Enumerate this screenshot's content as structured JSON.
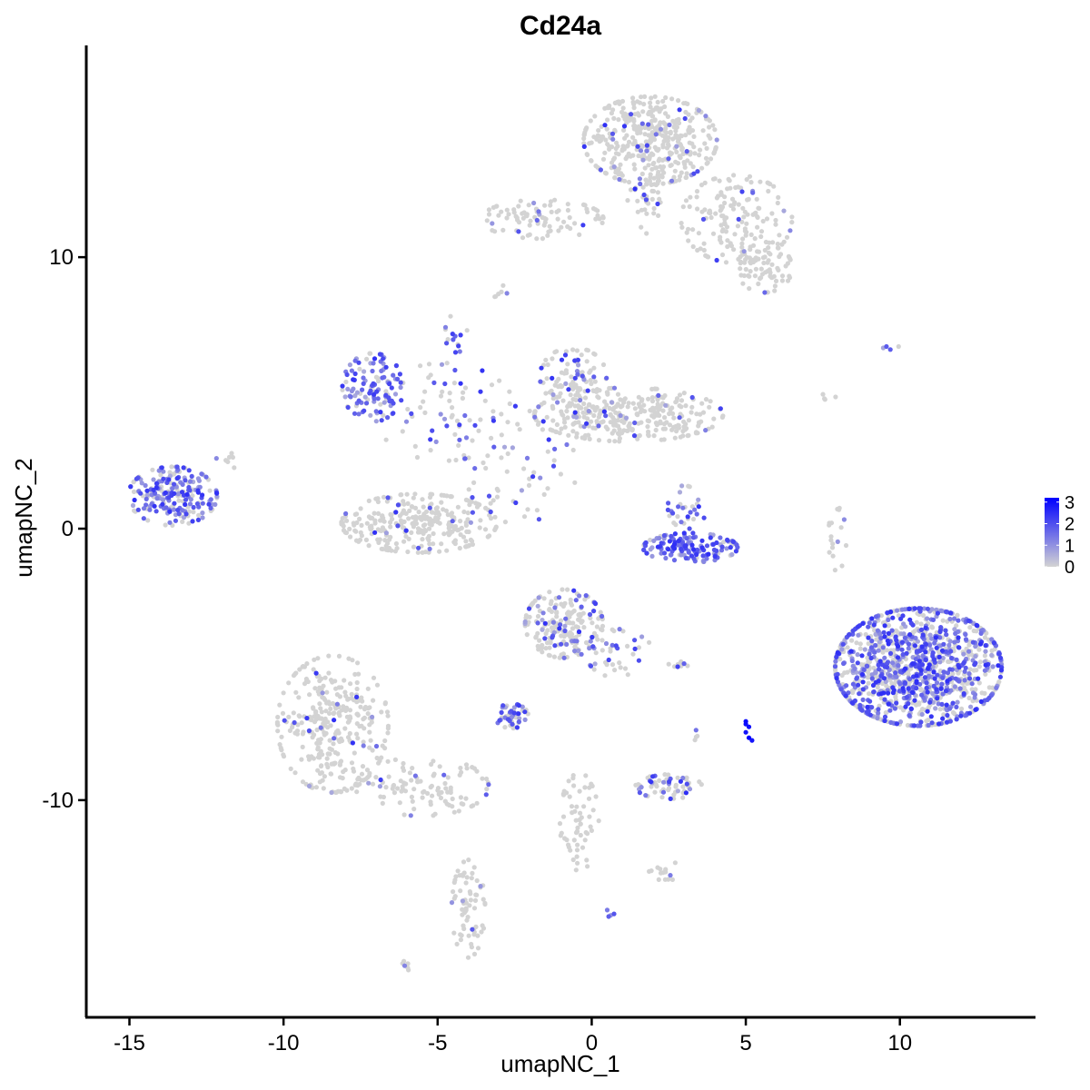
{
  "chart_data": {
    "type": "scatter",
    "title": "Cd24a",
    "xlabel": "umapNC_1",
    "ylabel": "umapNC_2",
    "xlim": [
      -16.4,
      14.4
    ],
    "ylim": [
      -18.0,
      17.8
    ],
    "xticks": [
      -15,
      -10,
      -5,
      0,
      5,
      10
    ],
    "yticks": [
      -10,
      0,
      10
    ],
    "xtick_labels": [
      "-15",
      "-10",
      "-5",
      "0",
      "5",
      "10"
    ],
    "ytick_labels": [
      "-10",
      "0",
      "10"
    ],
    "grid": false,
    "legend": {
      "position": "right",
      "type": "colorbar",
      "ticks": [
        0,
        1,
        2,
        3
      ],
      "tick_labels": [
        "0",
        "1",
        "2",
        "3"
      ],
      "low_color": "#d3d3d3",
      "high_color": "#0000ff",
      "range": [
        0,
        3.2
      ]
    },
    "point_color_low": "#d3d3d3",
    "point_color_high": "#0000ff",
    "clusters": [
      {
        "cx": 1.9,
        "cy": 14.3,
        "sx": 1.2,
        "sy": 0.9,
        "n": 420,
        "expr": 0.08
      },
      {
        "cx": 4.7,
        "cy": 11.4,
        "sx": 1.0,
        "sy": 0.9,
        "n": 160,
        "expr": 0.03
      },
      {
        "cx": 5.6,
        "cy": 9.6,
        "sx": 0.5,
        "sy": 0.5,
        "n": 70,
        "expr": 0.03
      },
      {
        "cx": -1.6,
        "cy": 11.4,
        "sx": 1.1,
        "sy": 0.4,
        "n": 90,
        "expr": 0.08
      },
      {
        "cx": 1.7,
        "cy": 12.3,
        "sx": 0.3,
        "sy": 0.8,
        "n": 40,
        "expr": 0.03
      },
      {
        "cx": -13.6,
        "cy": 1.2,
        "sx": 0.8,
        "sy": 0.6,
        "n": 220,
        "expr": 0.65
      },
      {
        "cx": -7.1,
        "cy": 5.2,
        "sx": 0.55,
        "sy": 0.7,
        "n": 120,
        "expr": 0.75
      },
      {
        "cx": -4.8,
        "cy": 4.3,
        "sx": 1.3,
        "sy": 1.0,
        "n": 70,
        "expr": 0.35
      },
      {
        "cx": -4.4,
        "cy": 7.2,
        "sx": 0.2,
        "sy": 0.4,
        "n": 15,
        "expr": 0.5
      },
      {
        "cx": -0.6,
        "cy": 5.6,
        "sx": 0.6,
        "sy": 0.6,
        "n": 90,
        "expr": 0.3
      },
      {
        "cx": 1.2,
        "cy": 4.2,
        "sx": 1.7,
        "sy": 0.55,
        "n": 320,
        "expr": 0.06
      },
      {
        "cx": -2.3,
        "cy": 2.2,
        "sx": 1.0,
        "sy": 1.2,
        "n": 60,
        "expr": 0.25
      },
      {
        "cx": -5.6,
        "cy": 0.2,
        "sx": 1.4,
        "sy": 0.6,
        "n": 280,
        "expr": 0.06
      },
      {
        "cx": 3.2,
        "cy": -0.7,
        "sx": 0.85,
        "sy": 0.3,
        "n": 150,
        "expr": 0.85
      },
      {
        "cx": 3.1,
        "cy": 0.8,
        "sx": 0.35,
        "sy": 0.45,
        "n": 30,
        "expr": 0.45
      },
      {
        "cx": 10.6,
        "cy": -5.1,
        "sx": 1.5,
        "sy": 1.2,
        "n": 1200,
        "expr": 0.55
      },
      {
        "cx": -8.4,
        "cy": -7.2,
        "sx": 1.0,
        "sy": 1.4,
        "n": 320,
        "expr": 0.05
      },
      {
        "cx": -5.5,
        "cy": -9.5,
        "sx": 1.2,
        "sy": 0.6,
        "n": 110,
        "expr": 0.05
      },
      {
        "cx": -0.9,
        "cy": -3.5,
        "sx": 0.7,
        "sy": 0.7,
        "n": 200,
        "expr": 0.25
      },
      {
        "cx": 0.9,
        "cy": -4.6,
        "sx": 0.6,
        "sy": 0.5,
        "n": 40,
        "expr": 0.35
      },
      {
        "cx": -2.6,
        "cy": -6.9,
        "sx": 0.3,
        "sy": 0.25,
        "n": 50,
        "expr": 0.7
      },
      {
        "cx": 2.5,
        "cy": -9.5,
        "sx": 0.6,
        "sy": 0.25,
        "n": 60,
        "expr": 0.35
      },
      {
        "cx": -0.4,
        "cy": -10.8,
        "sx": 0.35,
        "sy": 1.0,
        "n": 60,
        "expr": 0.03
      },
      {
        "cx": -4.0,
        "cy": -14.0,
        "sx": 0.3,
        "sy": 1.0,
        "n": 70,
        "expr": 0.05
      },
      {
        "cx": 2.4,
        "cy": -12.6,
        "sx": 0.3,
        "sy": 0.2,
        "n": 14,
        "expr": 0.05
      },
      {
        "cx": 7.9,
        "cy": -0.4,
        "sx": 0.2,
        "sy": 0.7,
        "n": 18,
        "expr": 0.1
      },
      {
        "cx": 9.6,
        "cy": 6.7,
        "sx": 0.2,
        "sy": 0.1,
        "n": 4,
        "expr": 0.6
      },
      {
        "cx": -11.7,
        "cy": 2.6,
        "sx": 0.3,
        "sy": 0.2,
        "n": 8,
        "expr": 0.05
      },
      {
        "cx": 2.8,
        "cy": -5.0,
        "sx": 0.3,
        "sy": 0.1,
        "n": 8,
        "expr": 0.5
      },
      {
        "cx": -6.0,
        "cy": -16.1,
        "sx": 0.15,
        "sy": 0.1,
        "n": 6,
        "expr": 0.02
      },
      {
        "cx": 0.6,
        "cy": -14.2,
        "sx": 0.1,
        "sy": 0.1,
        "n": 4,
        "expr": 0.9
      },
      {
        "cx": -3.0,
        "cy": 8.8,
        "sx": 0.15,
        "sy": 0.2,
        "n": 6,
        "expr": 0.2
      },
      {
        "cx": 7.6,
        "cy": 4.7,
        "sx": 0.2,
        "sy": 0.3,
        "n": 4,
        "expr": 0.05
      },
      {
        "cx": 3.4,
        "cy": -7.7,
        "sx": 0.1,
        "sy": 0.2,
        "n": 4,
        "expr": 0.6
      }
    ],
    "strong_points": [
      {
        "x": 5.0,
        "y": -7.1,
        "v": 3.1
      },
      {
        "x": 5.1,
        "y": -7.3,
        "v": 3.0
      },
      {
        "x": 5.0,
        "y": -7.5,
        "v": 2.9
      },
      {
        "x": 5.1,
        "y": -7.7,
        "v": 3.2
      },
      {
        "x": 5.2,
        "y": -7.8,
        "v": 2.9
      },
      {
        "x": 5.0,
        "y": -7.2,
        "v": 3.0
      }
    ]
  }
}
